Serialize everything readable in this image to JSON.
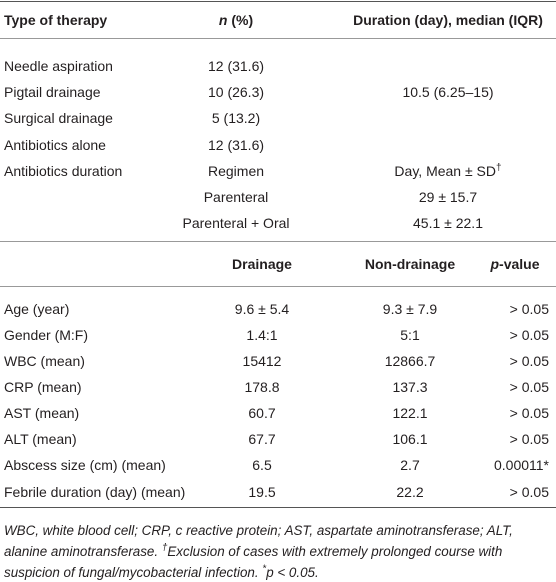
{
  "header": {
    "therapy": "Type of therapy",
    "n_italic": "n",
    "n_rest": " (%)",
    "duration": "Duration (day), median (IQR)"
  },
  "therapy_rows": [
    {
      "type": "Needle aspiration",
      "n": "12 (31.6)"
    },
    {
      "type": "Pigtail drainage",
      "n": "10 (26.3)"
    },
    {
      "type": "Surgical drainage",
      "n": "5 (13.2)"
    },
    {
      "type": "Antibiotics alone",
      "n": "12 (31.6)"
    }
  ],
  "duration_median": "10.5 (6.25–15)",
  "antibiotics": {
    "label": "Antibiotics duration",
    "regimen_header": "Regimen",
    "day_header": "Day, Mean ± SD",
    "dagger": "†",
    "rows": [
      {
        "regimen": "Parenteral",
        "day": "29 ± 15.7"
      },
      {
        "regimen": "Parenteral + Oral",
        "day": "45.1 ± 22.1"
      }
    ]
  },
  "comparison": {
    "drainage": "Drainage",
    "non_drainage": "Non-drainage",
    "p_italic": "p",
    "p_rest": "-value",
    "rows": [
      [
        "Age (year)",
        "9.6 ± 5.4",
        "9.3 ± 7.9",
        "> 0.05"
      ],
      [
        "Gender (M:F)",
        "1.4:1",
        "5:1",
        "> 0.05"
      ],
      [
        "WBC (mean)",
        "15412",
        "12866.7",
        "> 0.05"
      ],
      [
        "CRP (mean)",
        "178.8",
        "137.3",
        "> 0.05"
      ],
      [
        "AST (mean)",
        "60.7",
        "122.1",
        "> 0.05"
      ],
      [
        "ALT (mean)",
        "67.7",
        "106.1",
        "> 0.05"
      ],
      [
        "Abscess size (cm) (mean)",
        "6.5",
        "2.7",
        "0.00011*"
      ],
      [
        "Febrile duration (day) (mean)",
        "19.5",
        "22.2",
        "> 0.05"
      ]
    ]
  },
  "footnote": {
    "text1": "WBC, white blood cell; CRP, c reactive protein; AST, aspartate aminotransferase; ALT, alanine aminotransferase. ",
    "dagger": "†",
    "text2": "Exclusion of cases with extremely prolonged course with suspicion of fungal/mycobacterial infection. ",
    "star": "*",
    "p": "p",
    "text3": " < 0.05."
  }
}
